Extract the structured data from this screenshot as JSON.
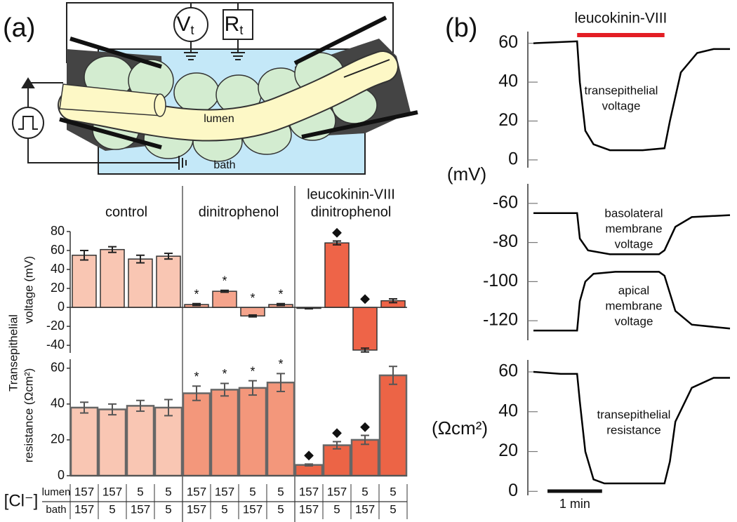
{
  "labels": {
    "a": "(a)",
    "b": "(b)"
  },
  "diagram": {
    "vt": "V",
    "vt_sub": "t",
    "rt": "R",
    "rt_sub": "t",
    "lumen": "lumen",
    "bath": "bath"
  },
  "cl_table": {
    "label": "[Cl⁻]",
    "rows": [
      {
        "name": "lumen",
        "values": [
          157,
          157,
          5,
          5,
          157,
          157,
          5,
          5,
          157,
          157,
          5,
          5
        ]
      },
      {
        "name": "bath",
        "values": [
          157,
          5,
          157,
          5,
          157,
          5,
          157,
          5,
          157,
          5,
          157,
          5
        ]
      }
    ]
  },
  "chart_data": [
    {
      "type": "bar",
      "ylabel_shared": "Transepithelial",
      "ylabel": "voltage (mV)",
      "groups": [
        [
          "control"
        ],
        [
          "dinitrophenol"
        ],
        [
          "leucokinin-VIII",
          "dinitrophenol"
        ]
      ],
      "values": [
        55,
        61,
        51,
        54,
        3,
        17,
        -9,
        3,
        -1,
        68,
        -45,
        7
      ],
      "errors": [
        5,
        3,
        4,
        3,
        1,
        1,
        1,
        1,
        0.5,
        2,
        2,
        2
      ],
      "colors": [
        "#f9c6b3",
        "#f9c6b3",
        "#f9c6b3",
        "#f9c6b3",
        "#f5a48c",
        "#f5a48c",
        "#f5a48c",
        "#f5a48c",
        "#ee6448",
        "#ee6448",
        "#ee6448",
        "#ee6448"
      ],
      "markers": [
        null,
        null,
        null,
        null,
        "*",
        "*",
        "*",
        "*",
        null,
        "◆",
        "◆",
        null
      ],
      "ylim": [
        -48,
        80
      ],
      "yticks": [
        -40,
        -20,
        0,
        20,
        40,
        60,
        80
      ]
    },
    {
      "type": "bar",
      "ylabel": "resistance (Ωcm²)",
      "values": [
        38,
        37,
        39,
        38,
        46,
        48,
        49,
        52,
        6,
        17,
        20,
        56
      ],
      "errors": [
        3,
        3,
        3,
        4.5,
        4,
        3.5,
        4,
        5,
        0.5,
        2,
        2.5,
        5
      ],
      "colors": [
        "#f9c6b3",
        "#f9c6b3",
        "#f9c6b3",
        "#f9c6b3",
        "#f3977b",
        "#f3977b",
        "#f3977b",
        "#f3977b",
        "#ec6446",
        "#ec6446",
        "#ec6446",
        "#ec6446"
      ],
      "markers": [
        null,
        null,
        null,
        null,
        "*",
        "*",
        "*",
        "*",
        "◆",
        "◆",
        "◆",
        null
      ],
      "ylim": [
        0,
        65
      ],
      "yticks": [
        0,
        20,
        40,
        60
      ]
    },
    {
      "type": "line",
      "ylabel": "(mV)",
      "treatment": {
        "label": "leucokinin-VIII",
        "x": [
          0.8,
          2.4
        ],
        "color": "#e31e24"
      },
      "xlim": [
        0,
        3.6
      ],
      "ylim": [
        -4,
        66
      ],
      "yticks": [
        0,
        20,
        40,
        60
      ],
      "series": [
        {
          "label_lines": [
            "transepithelial",
            "voltage"
          ],
          "color": "#000000",
          "x": [
            0,
            0.8,
            0.85,
            0.95,
            1.1,
            1.4,
            2.0,
            2.4,
            2.5,
            2.7,
            3.0,
            3.3,
            3.6
          ],
          "values": [
            60,
            61,
            40,
            15,
            8,
            5,
            5,
            6,
            20,
            45,
            55,
            57,
            57
          ]
        }
      ]
    },
    {
      "type": "line",
      "xlim": [
        0,
        3.6
      ],
      "ylim": [
        -130,
        -50
      ],
      "yticks": [
        -60,
        -80,
        -100,
        -120
      ],
      "series": [
        {
          "label_lines": [
            "basolateral",
            "membrane",
            "voltage"
          ],
          "color": "#000000",
          "x": [
            0,
            0.8,
            0.85,
            1.0,
            1.4,
            2.3,
            2.4,
            2.6,
            2.9,
            3.6
          ],
          "values": [
            -65,
            -65,
            -78,
            -84,
            -86,
            -86,
            -84,
            -72,
            -67,
            -66
          ]
        },
        {
          "label_lines": [
            "apical",
            "membrane",
            "voltage"
          ],
          "color": "#000000",
          "x": [
            0,
            0.8,
            0.85,
            0.95,
            1.1,
            1.5,
            2.3,
            2.4,
            2.6,
            2.9,
            3.6
          ],
          "values": [
            -125,
            -125,
            -110,
            -100,
            -96,
            -95,
            -95,
            -97,
            -115,
            -122,
            -124
          ]
        }
      ]
    },
    {
      "type": "line",
      "ylabel": "(Ωcm²)",
      "scalebar": {
        "label": "1 min",
        "length": 1
      },
      "xlim": [
        0,
        3.6
      ],
      "ylim": [
        -2,
        66
      ],
      "yticks": [
        0,
        20,
        40,
        60
      ],
      "series": [
        {
          "label_lines": [
            "transepithelial",
            "resistance"
          ],
          "color": "#000000",
          "x": [
            0,
            0.5,
            0.8,
            0.85,
            0.95,
            1.1,
            1.3,
            2.4,
            2.5,
            2.6,
            2.9,
            3.3,
            3.6
          ],
          "values": [
            60,
            59,
            59,
            45,
            20,
            6,
            4,
            4,
            15,
            35,
            52,
            57,
            57
          ]
        }
      ]
    }
  ]
}
